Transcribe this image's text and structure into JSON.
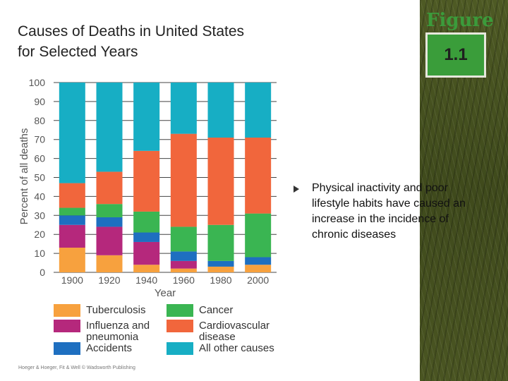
{
  "title": {
    "line1": "Causes of Deaths in United States",
    "line2": "for Selected Years"
  },
  "figure": {
    "word": "Figure",
    "number": "1.1"
  },
  "bullet": {
    "text": "Physical inactivity and poor lifestyle habits have caused an increase in the incidence of chronic diseases"
  },
  "credit": "Hoeger & Hoeger, Fit & Well © Wadsworth Publishing",
  "colors": {
    "tuberculosis": "#f7a13e",
    "influenza": "#b5287c",
    "accidents": "#1e6fc0",
    "cancer": "#3ab552",
    "cardiovascular": "#f1663c",
    "other": "#17aec4",
    "grid": "#444444"
  },
  "chart_data": {
    "type": "bar",
    "stacked": true,
    "title": "",
    "xlabel": "Year",
    "ylabel": "Percent of all deaths",
    "ylim": [
      0,
      100
    ],
    "yticks": [
      0,
      10,
      20,
      30,
      40,
      50,
      60,
      70,
      80,
      90,
      100
    ],
    "grid": true,
    "categories": [
      "1900",
      "1920",
      "1940",
      "1960",
      "1980",
      "2000"
    ],
    "series": [
      {
        "name": "Tuberculosis",
        "key": "tuberculosis",
        "values": [
          13,
          9,
          4,
          2,
          3,
          4
        ]
      },
      {
        "name": "Influenza and pneumonia",
        "key": "influenza",
        "values": [
          12,
          15,
          12,
          4,
          0,
          0
        ]
      },
      {
        "name": "Accidents",
        "key": "accidents",
        "values": [
          5,
          5,
          5,
          5,
          3,
          4
        ]
      },
      {
        "name": "Cancer",
        "key": "cancer",
        "values": [
          4,
          7,
          11,
          13,
          19,
          23
        ]
      },
      {
        "name": "Cardiovascular disease",
        "key": "cardiovascular",
        "values": [
          13,
          17,
          32,
          49,
          46,
          40
        ]
      },
      {
        "name": "All other causes",
        "key": "other",
        "values": [
          53,
          47,
          36,
          27,
          29,
          29
        ]
      }
    ],
    "legend": [
      {
        "label": "Tuberculosis",
        "key": "tuberculosis"
      },
      {
        "label": "Influenza and\npneumonia",
        "key": "influenza"
      },
      {
        "label": "Accidents",
        "key": "accidents"
      },
      {
        "label": "Cancer",
        "key": "cancer"
      },
      {
        "label": "Cardiovascular\ndisease",
        "key": "cardiovascular"
      },
      {
        "label": "All other causes",
        "key": "other"
      }
    ]
  }
}
